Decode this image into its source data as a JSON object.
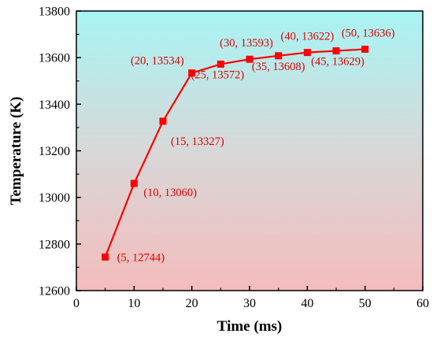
{
  "chart_data": {
    "type": "line",
    "title": "",
    "xlabel": "Time (ms)",
    "ylabel": "Temperature  (K)",
    "xlim": [
      0,
      60
    ],
    "ylim": [
      12600,
      13800
    ],
    "xticks": [
      0,
      10,
      20,
      30,
      40,
      50,
      60
    ],
    "yticks": [
      12600,
      12800,
      13000,
      13200,
      13400,
      13600,
      13800
    ],
    "grid": false,
    "legend": "none",
    "background_gradient": [
      "#a8f4f4",
      "#f4bcbc"
    ],
    "series": [
      {
        "color": "#ff0000",
        "marker": "square",
        "x": [
          5,
          10,
          15,
          20,
          25,
          30,
          35,
          40,
          45,
          50
        ],
        "y": [
          12744,
          13060,
          13327,
          13534,
          13572,
          13593,
          13608,
          13622,
          13629,
          13636
        ],
        "labels": [
          "(5, 12744)",
          "(10, 13060)",
          "(15, 13327)",
          "(20, 13534)",
          "(25, 13572)",
          "(30, 13593)",
          "(35, 13608)",
          "(40, 13622)",
          "(45, 13629)",
          "(50, 13636)"
        ]
      }
    ]
  }
}
